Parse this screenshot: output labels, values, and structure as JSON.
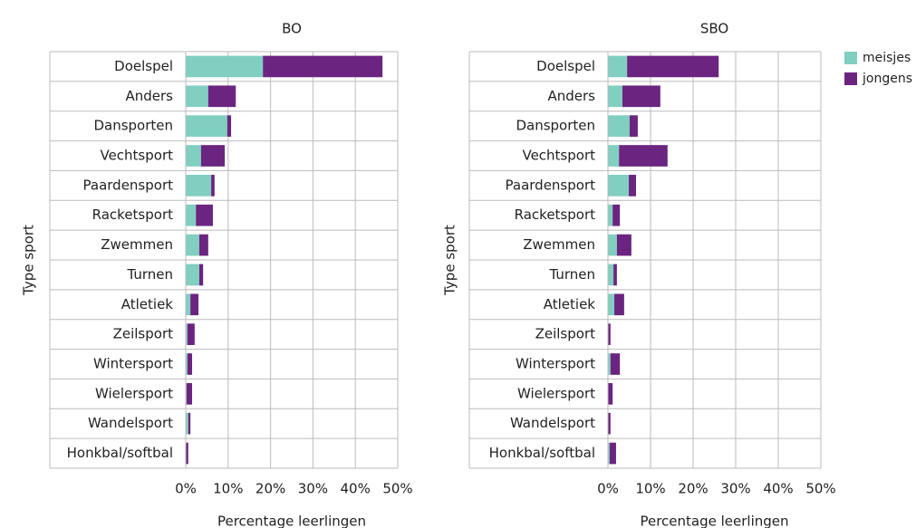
{
  "chart_data": [
    {
      "type": "bar",
      "orientation": "horizontal",
      "stacked": true,
      "title": "BO",
      "xlabel": "Percentage leerlingen",
      "ylabel": "Type sport",
      "categories": [
        "Doelspel",
        "Anders",
        "Dansporten",
        "Vechtsport",
        "Paardensport",
        "Racketsport",
        "Zwemmen",
        "Turnen",
        "Atletiek",
        "Zeilsport",
        "Wintersport",
        "Wielersport",
        "Wandelsport",
        "Honkbal/softbal"
      ],
      "series": [
        {
          "color": "#80cfc0",
          "values": [
            18.2,
            5.3,
            9.8,
            3.6,
            6.0,
            2.4,
            3.2,
            3.2,
            1.1,
            0.4,
            0.4,
            0.2,
            0.6,
            0.1
          ]
        },
        {
          "color": "#6b2480",
          "values": [
            28.2,
            6.5,
            0.9,
            5.6,
            0.8,
            4.0,
            2.1,
            0.9,
            1.9,
            1.7,
            1.1,
            1.3,
            0.5,
            0.5
          ]
        }
      ],
      "xlim": [
        0,
        50
      ],
      "xticks": [
        {
          "value": 0,
          "label": "0%"
        },
        {
          "value": 10,
          "label": "10%"
        },
        {
          "value": 20,
          "label": "20%"
        },
        {
          "value": 30,
          "label": "30%"
        },
        {
          "value": 40,
          "label": "40%"
        },
        {
          "value": 50,
          "label": "50%"
        }
      ],
      "grid": true
    },
    {
      "type": "bar",
      "orientation": "horizontal",
      "stacked": true,
      "title": "SBO",
      "xlabel": "Percentage leerlingen",
      "ylabel": "Type sport",
      "categories": [
        "Doelspel",
        "Anders",
        "Dansporten",
        "Vechtsport",
        "Paardensport",
        "Racketsport",
        "Zwemmen",
        "Turnen",
        "Atletiek",
        "Zeilsport",
        "Wintersport",
        "Wielersport",
        "Wandelsport",
        "Honkbal/softbal"
      ],
      "series": [
        {
          "name": "meisjes",
          "color": "#80cfc0",
          "values": [
            4.5,
            3.4,
            5.1,
            2.6,
            4.9,
            1.1,
            2.1,
            1.3,
            1.5,
            0,
            0.6,
            0.1,
            0.1,
            0.4
          ]
        },
        {
          "name": "jongens",
          "color": "#6b2480",
          "values": [
            21.5,
            8.9,
            1.9,
            11.4,
            1.7,
            1.7,
            3.4,
            0.8,
            2.3,
            0.6,
            2.2,
            1.0,
            0.5,
            1.5
          ]
        }
      ],
      "xlim": [
        0,
        50
      ],
      "xticks": [
        {
          "value": 0,
          "label": "0%"
        },
        {
          "value": 10,
          "label": "10%"
        },
        {
          "value": 20,
          "label": "20%"
        },
        {
          "value": 30,
          "label": "30%"
        },
        {
          "value": 40,
          "label": "40%"
        },
        {
          "value": 50,
          "label": "50%"
        }
      ],
      "grid": true,
      "legend": "right"
    }
  ]
}
